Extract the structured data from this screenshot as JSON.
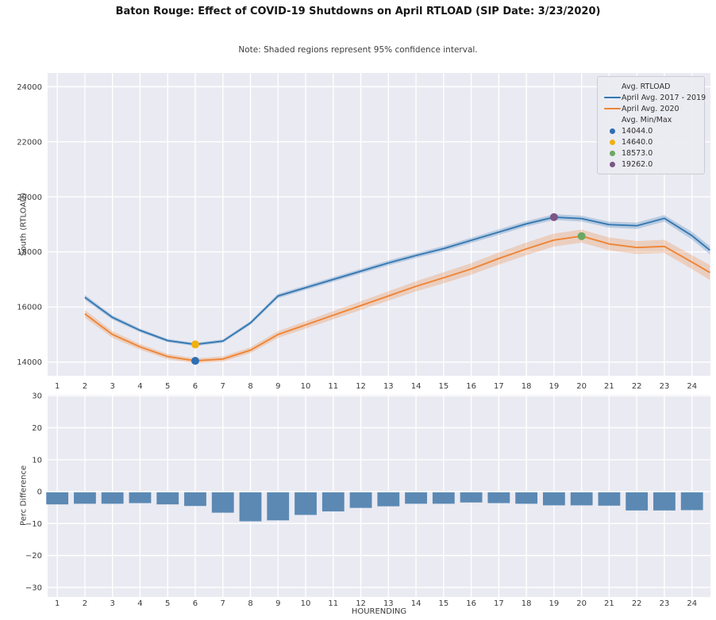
{
  "figure": {
    "title": "Baton Rouge: Effect of COVID-19 Shutdowns on April RTLOAD (SIP Date: 3/23/2020)",
    "note": "Note: Shaded regions represent 95% confidence interval."
  },
  "colors": {
    "plot_bg": "#eaeaf2",
    "grid": "#ffffff",
    "blue_line": "#3478b2",
    "orange_line": "#ee8536",
    "bar": "#5b89b4",
    "tick_text": "#3a3a3a"
  },
  "chart_data": [
    {
      "type": "line",
      "ylabel": "South (RTLOAD)",
      "xlim": [
        0.65,
        24.67
      ],
      "ylim": [
        13500,
        24500
      ],
      "yticks": [
        14000,
        16000,
        18000,
        20000,
        22000,
        24000
      ],
      "xticks": [
        1,
        2,
        3,
        4,
        5,
        6,
        7,
        8,
        9,
        10,
        11,
        12,
        13,
        14,
        15,
        16,
        17,
        18,
        19,
        20,
        21,
        22,
        23,
        24
      ],
      "grid": true,
      "x": [
        2,
        3,
        4,
        5,
        6,
        7,
        8,
        9,
        10,
        11,
        12,
        13,
        14,
        15,
        16,
        17,
        18,
        19,
        20,
        21,
        22,
        23,
        24,
        24.65
      ],
      "series": [
        {
          "name": "April Avg. 2017 - 2019",
          "color": "#3478b2",
          "values": [
            16350,
            15620,
            15150,
            14780,
            14640,
            14760,
            15420,
            16400,
            16700,
            17000,
            17300,
            17600,
            17870,
            18120,
            18420,
            18720,
            19020,
            19262,
            19210,
            18990,
            18950,
            19220,
            18590,
            18060
          ],
          "ci_halfwidth": [
            90,
            75,
            65,
            60,
            60,
            60,
            70,
            80,
            80,
            85,
            85,
            90,
            90,
            95,
            95,
            100,
            100,
            105,
            105,
            110,
            115,
            120,
            140,
            150
          ]
        },
        {
          "name": "April Avg. 2020",
          "color": "#ee8536",
          "values": [
            15750,
            15000,
            14550,
            14200,
            14044,
            14110,
            14430,
            15000,
            15350,
            15700,
            16050,
            16400,
            16750,
            17060,
            17380,
            17760,
            18110,
            18430,
            18573,
            18290,
            18160,
            18200,
            17630,
            17250
          ],
          "ci_halfwidth": [
            140,
            120,
            105,
            95,
            90,
            95,
            105,
            120,
            135,
            150,
            160,
            170,
            185,
            200,
            210,
            220,
            230,
            235,
            235,
            235,
            235,
            240,
            255,
            270
          ]
        }
      ],
      "markers": [
        {
          "label": "14044.0",
          "x": 6,
          "y": 14044,
          "color": "#2d6fb4"
        },
        {
          "label": "14640.0",
          "x": 6,
          "y": 14640,
          "color": "#f0b011"
        },
        {
          "label": "18573.0",
          "x": 20,
          "y": 18573,
          "color": "#6ba862"
        },
        {
          "label": "19262.0",
          "x": 19,
          "y": 19262,
          "color": "#7c5685"
        }
      ],
      "legend": {
        "items": [
          {
            "kind": "header",
            "label": "Avg. RTLOAD"
          },
          {
            "kind": "line",
            "label": "April Avg. 2017 - 2019",
            "color": "#3478b2"
          },
          {
            "kind": "line",
            "label": "April Avg. 2020",
            "color": "#ee8536"
          },
          {
            "kind": "header",
            "label": "Avg. Min/Max"
          },
          {
            "kind": "dot",
            "label": "14044.0",
            "color": "#2d6fb4"
          },
          {
            "kind": "dot",
            "label": "14640.0",
            "color": "#f0b011"
          },
          {
            "kind": "dot",
            "label": "18573.0",
            "color": "#6ba862"
          },
          {
            "kind": "dot",
            "label": "19262.0",
            "color": "#7c5685"
          }
        ]
      }
    },
    {
      "type": "bar",
      "ylabel": "Perc Difference",
      "xlabel": "HOURENDING",
      "ylim": [
        -33,
        30.3
      ],
      "yticks": [
        30,
        20,
        10,
        0,
        -10,
        -20,
        -30
      ],
      "categories": [
        1,
        2,
        3,
        4,
        5,
        6,
        7,
        8,
        9,
        10,
        11,
        12,
        13,
        14,
        15,
        16,
        17,
        18,
        19,
        20,
        21,
        22,
        23,
        24
      ],
      "values": [
        -4.0,
        -3.8,
        -3.8,
        -3.6,
        -4.0,
        -4.5,
        -6.6,
        -9.3,
        -9.0,
        -7.3,
        -6.2,
        -5.1,
        -4.6,
        -3.8,
        -3.8,
        -3.4,
        -3.6,
        -3.8,
        -4.3,
        -4.3,
        -4.4,
        -5.9,
        -5.9,
        -5.8
      ],
      "bar_color": "#5b89b4",
      "grid": true
    }
  ]
}
